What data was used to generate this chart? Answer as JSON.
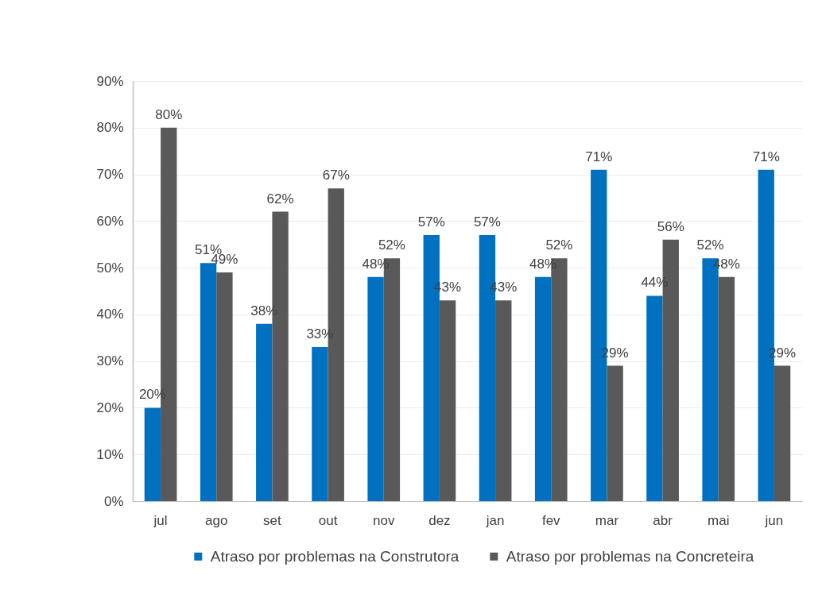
{
  "chart_data": {
    "type": "bar",
    "categories": [
      "jul",
      "ago",
      "set",
      "out",
      "nov",
      "dez",
      "jan",
      "fev",
      "mar",
      "abr",
      "mai",
      "jun"
    ],
    "series": [
      {
        "name": "Atraso por problemas na Construtora",
        "color": "#0070c0",
        "values": [
          20,
          51,
          38,
          33,
          48,
          57,
          57,
          48,
          71,
          44,
          52,
          71
        ],
        "value_labels": [
          "20%",
          "51%",
          "38%",
          "33%",
          "48%",
          "57%",
          "57%",
          "48%",
          "71%",
          "44%",
          "52%",
          "71%"
        ]
      },
      {
        "name": "Atraso por problemas na Concreteira",
        "color": "#595959",
        "values": [
          80,
          49,
          62,
          67,
          52,
          43,
          43,
          52,
          29,
          56,
          48,
          29
        ],
        "value_labels": [
          "80%",
          "49%",
          "62%",
          "67%",
          "52%",
          "43%",
          "43%",
          "52%",
          "29%",
          "56%",
          "48%",
          "29%"
        ]
      }
    ],
    "ylim": [
      0,
      90
    ],
    "yticks": [
      {
        "value": 0,
        "label": "0%"
      },
      {
        "value": 10,
        "label": "10%"
      },
      {
        "value": 20,
        "label": "20%"
      },
      {
        "value": 30,
        "label": "30%"
      },
      {
        "value": 40,
        "label": "40%"
      },
      {
        "value": 50,
        "label": "50%"
      },
      {
        "value": 60,
        "label": "60%"
      },
      {
        "value": 70,
        "label": "70%"
      },
      {
        "value": 80,
        "label": "80%"
      },
      {
        "value": 90,
        "label": "90%"
      }
    ],
    "grid": "y",
    "legend": "bottom"
  }
}
